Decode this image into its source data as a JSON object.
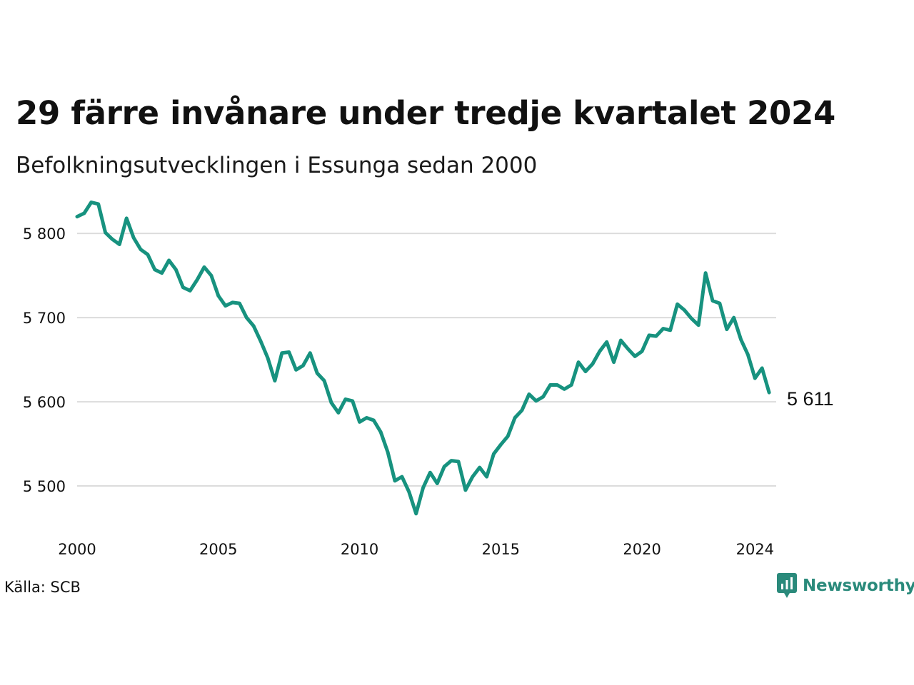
{
  "title": "29 färre invånare under tredje kvartalet 2024",
  "subtitle": "Befolkningsutvecklingen i Essunga sedan 2000",
  "source": "Källa: SCB",
  "brand": {
    "name": "Newsworthy",
    "icon": "newsworthy-logo-icon"
  },
  "colors": {
    "line": "#17927f",
    "grid": "#dcdcdc",
    "brand": "#2a8a7b",
    "text": "#111111"
  },
  "chart_data": {
    "type": "line",
    "title": "29 färre invånare under tredje kvartalet 2024",
    "subtitle": "Befolkningsutvecklingen i Essunga sedan 2000",
    "xlabel": "",
    "ylabel": "",
    "xlim": [
      2000.0,
      2024.75
    ],
    "ylim": [
      5450,
      5840
    ],
    "x_ticks": [
      2000,
      2005,
      2010,
      2015,
      2020,
      2024
    ],
    "x_tick_labels": [
      "2000",
      "2005",
      "2010",
      "2015",
      "2020",
      "2024"
    ],
    "y_ticks": [
      5500,
      5600,
      5700,
      5800
    ],
    "y_tick_labels": [
      "5 500",
      "5 600",
      "5 700",
      "5 800"
    ],
    "grid": "horizontal",
    "last_value_label": "5 611",
    "series": [
      {
        "name": "",
        "x_start": 2000.0,
        "x_step": 0.25,
        "values": [
          5820,
          5824,
          5837,
          5835,
          5801,
          5793,
          5787,
          5818,
          5795,
          5781,
          5775,
          5757,
          5753,
          5768,
          5757,
          5736,
          5732,
          5745,
          5760,
          5750,
          5726,
          5714,
          5718,
          5717,
          5700,
          5690,
          5672,
          5652,
          5625,
          5658,
          5659,
          5638,
          5643,
          5658,
          5634,
          5625,
          5599,
          5587,
          5603,
          5601,
          5576,
          5581,
          5578,
          5564,
          5540,
          5506,
          5511,
          5493,
          5467,
          5498,
          5516,
          5503,
          5523,
          5530,
          5529,
          5495,
          5511,
          5522,
          5511,
          5538,
          5549,
          5559,
          5581,
          5590,
          5609,
          5601,
          5606,
          5620,
          5620,
          5615,
          5620,
          5647,
          5636,
          5645,
          5660,
          5671,
          5647,
          5673,
          5663,
          5654,
          5660,
          5679,
          5678,
          5687,
          5685,
          5716,
          5709,
          5699,
          5691,
          5753,
          5720,
          5717,
          5686,
          5700,
          5674,
          5656,
          5628,
          5640,
          5611
        ]
      }
    ]
  }
}
